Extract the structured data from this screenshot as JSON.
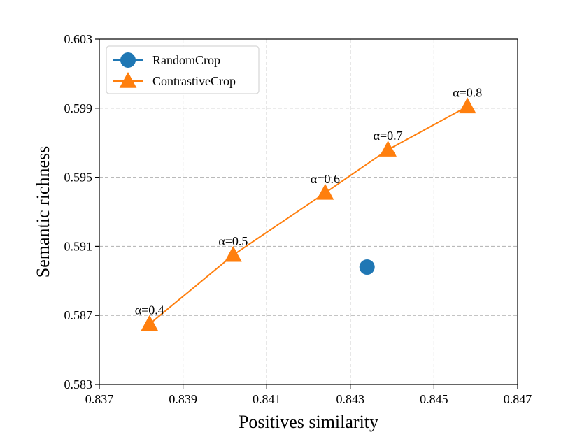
{
  "chart_data": {
    "type": "scatter",
    "xlabel": "Positives similarity",
    "ylabel": "Semantic richness",
    "xlim": [
      0.837,
      0.847
    ],
    "ylim": [
      0.583,
      0.603
    ],
    "x_ticks": [
      "0.837",
      "0.839",
      "0.841",
      "0.843",
      "0.845",
      "0.847"
    ],
    "y_ticks": [
      "0.583",
      "0.587",
      "0.591",
      "0.595",
      "0.599",
      "0.603"
    ],
    "grid": true,
    "legend_position": "top-left",
    "series": [
      {
        "name": "RandomCrop",
        "marker": "circle",
        "color": "#1f77b4",
        "line": false,
        "points": [
          {
            "x": 0.8434,
            "y": 0.5898
          }
        ]
      },
      {
        "name": "ContrastiveCrop",
        "marker": "triangle",
        "color": "#ff7f0e",
        "line": true,
        "points": [
          {
            "x": 0.8382,
            "y": 0.5865,
            "label": "α=0.4"
          },
          {
            "x": 0.8402,
            "y": 0.5905,
            "label": "α=0.5"
          },
          {
            "x": 0.8424,
            "y": 0.5941,
            "label": "α=0.6"
          },
          {
            "x": 0.8439,
            "y": 0.5966,
            "label": "α=0.7"
          },
          {
            "x": 0.8458,
            "y": 0.5991,
            "label": "α=0.8"
          }
        ]
      }
    ]
  }
}
